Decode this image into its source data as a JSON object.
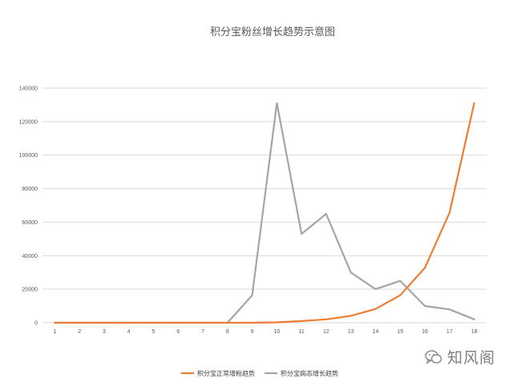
{
  "chart_data": {
    "type": "line",
    "title": "积分宝粉丝增长趋势示意图",
    "x": [
      1,
      2,
      3,
      4,
      5,
      6,
      7,
      8,
      9,
      10,
      11,
      12,
      13,
      14,
      15,
      16,
      17,
      18
    ],
    "ylim": [
      0,
      140000
    ],
    "yticks": [
      0,
      20000,
      40000,
      60000,
      80000,
      100000,
      120000,
      140000
    ],
    "grid": true,
    "legend_position": "bottom",
    "series": [
      {
        "name": "积分宝正常增粉趋势",
        "color": "#ed7d31",
        "values": [
          0,
          0,
          0,
          0,
          0,
          0,
          0,
          0,
          0,
          250,
          1000,
          2000,
          4100,
          8200,
          16400,
          32800,
          65600,
          131000
        ]
      },
      {
        "name": "积分宝病态增长趋势",
        "color": "#a5a5a5",
        "values": [
          0,
          0,
          0,
          0,
          0,
          0,
          0,
          0,
          16400,
          131000,
          53000,
          65000,
          30000,
          20000,
          25000,
          10000,
          8000,
          2000
        ]
      }
    ]
  },
  "watermark": {
    "text": "知风阁"
  }
}
